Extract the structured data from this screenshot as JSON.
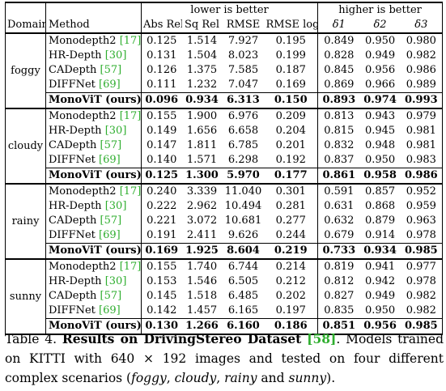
{
  "table": {
    "group_headers": {
      "lower": "lower is better",
      "higher": "higher is better"
    },
    "columns": {
      "domain": "Domain",
      "method": "Method",
      "metrics": [
        "Abs Rel",
        "Sq Rel",
        "RMSE",
        "RMSE log",
        "δ1",
        "δ2",
        "δ3"
      ]
    },
    "groups": [
      {
        "domain": "foggy",
        "rows": [
          {
            "method": "Monodepth2",
            "cite": "[17]",
            "values": [
              "0.125",
              "1.514",
              "7.927",
              "0.195",
              "0.849",
              "0.950",
              "0.980"
            ]
          },
          {
            "method": "HR-Depth",
            "cite": "[30]",
            "values": [
              "0.131",
              "1.504",
              "8.023",
              "0.199",
              "0.828",
              "0.949",
              "0.982"
            ]
          },
          {
            "method": "CADepth",
            "cite": "[57]",
            "values": [
              "0.126",
              "1.375",
              "7.585",
              "0.187",
              "0.845",
              "0.956",
              "0.986"
            ]
          },
          {
            "method": "DIFFNet",
            "cite": "[69]",
            "values": [
              "0.111",
              "1.232",
              "7.047",
              "0.169",
              "0.869",
              "0.966",
              "0.989"
            ]
          },
          {
            "method": "MonoViT (ours)",
            "cite": "",
            "bold": true,
            "values": [
              "0.096",
              "0.934",
              "6.313",
              "0.150",
              "0.893",
              "0.974",
              "0.993"
            ]
          }
        ]
      },
      {
        "domain": "cloudy",
        "rows": [
          {
            "method": "Monodepth2",
            "cite": "[17]",
            "values": [
              "0.155",
              "1.900",
              "6.976",
              "0.209",
              "0.813",
              "0.943",
              "0.979"
            ]
          },
          {
            "method": "HR-Depth",
            "cite": "[30]",
            "values": [
              "0.149",
              "1.656",
              "6.658",
              "0.204",
              "0.815",
              "0.945",
              "0.981"
            ]
          },
          {
            "method": "CADepth",
            "cite": "[57]",
            "values": [
              "0.147",
              "1.811",
              "6.785",
              "0.201",
              "0.832",
              "0.948",
              "0.981"
            ]
          },
          {
            "method": "DIFFNet",
            "cite": "[69]",
            "values": [
              "0.140",
              "1.571",
              "6.298",
              "0.192",
              "0.837",
              "0.950",
              "0.983"
            ]
          },
          {
            "method": "MonoViT (ours)",
            "cite": "",
            "bold": true,
            "values": [
              "0.125",
              "1.300",
              "5.970",
              "0.177",
              "0.861",
              "0.958",
              "0.986"
            ]
          }
        ]
      },
      {
        "domain": "rainy",
        "rows": [
          {
            "method": "Monodepth2",
            "cite": "[17]",
            "values": [
              "0.240",
              "3.339",
              "11.040",
              "0.301",
              "0.591",
              "0.857",
              "0.952"
            ]
          },
          {
            "method": "HR-Depth",
            "cite": "[30]",
            "values": [
              "0.222",
              "2.962",
              "10.494",
              "0.281",
              "0.631",
              "0.868",
              "0.959"
            ]
          },
          {
            "method": "CADepth",
            "cite": "[57]",
            "values": [
              "0.221",
              "3.072",
              "10.681",
              "0.277",
              "0.632",
              "0.879",
              "0.963"
            ]
          },
          {
            "method": "DIFFNet",
            "cite": "[69]",
            "values": [
              "0.191",
              "2.411",
              "9.626",
              "0.244",
              "0.679",
              "0.914",
              "0.978"
            ]
          },
          {
            "method": "MonoViT (ours)",
            "cite": "",
            "bold": true,
            "values": [
              "0.169",
              "1.925",
              "8.604",
              "0.219",
              "0.733",
              "0.934",
              "0.985"
            ]
          }
        ]
      },
      {
        "domain": "sunny",
        "rows": [
          {
            "method": "Monodepth2",
            "cite": "[17]",
            "values": [
              "0.155",
              "1.740",
              "6.744",
              "0.214",
              "0.819",
              "0.941",
              "0.977"
            ]
          },
          {
            "method": "HR-Depth",
            "cite": "[30]",
            "values": [
              "0.153",
              "1.546",
              "6.505",
              "0.212",
              "0.812",
              "0.942",
              "0.978"
            ]
          },
          {
            "method": "CADepth",
            "cite": "[57]",
            "values": [
              "0.145",
              "1.518",
              "6.485",
              "0.202",
              "0.827",
              "0.949",
              "0.982"
            ]
          },
          {
            "method": "DIFFNet",
            "cite": "[69]",
            "values": [
              "0.142",
              "1.457",
              "6.165",
              "0.197",
              "0.835",
              "0.950",
              "0.982"
            ]
          },
          {
            "method": "MonoViT (ours)",
            "cite": "",
            "bold": true,
            "values": [
              "0.130",
              "1.266",
              "6.160",
              "0.186",
              "0.851",
              "0.956",
              "0.985"
            ]
          }
        ]
      }
    ]
  },
  "caption": {
    "label": "Table 4.",
    "title": "Results on DrivingStereo Dataset",
    "title_cite": "[58]",
    "text_1": ". Models trained on KITTI with 640 × 192 images and tested on four different complex scenarios (",
    "s1": "foggy",
    "sep1": ", ",
    "s2": "cloudy",
    "sep2": ", ",
    "s3": "rainy",
    "sep3": " and ",
    "s4": "sunny",
    "text_2": ")."
  }
}
